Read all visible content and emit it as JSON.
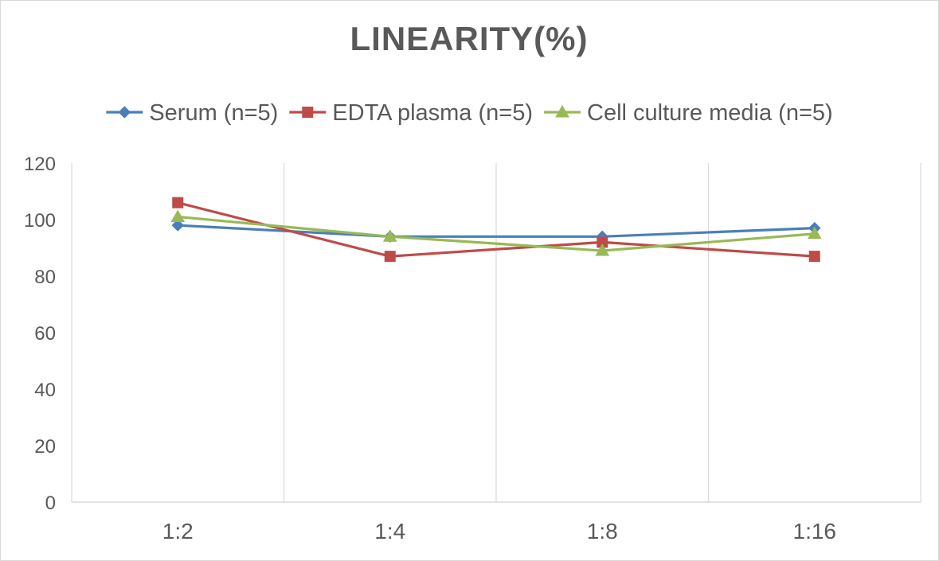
{
  "chart_data": {
    "type": "line",
    "title": "LINEARITY(%)",
    "xlabel": "",
    "ylabel": "",
    "categories": [
      "1:2",
      "1:4",
      "1:8",
      "1:16"
    ],
    "ylim": [
      0,
      120
    ],
    "yticks": [
      0,
      20,
      40,
      60,
      80,
      100,
      120
    ],
    "grid": "vertical",
    "legend_position": "top",
    "series": [
      {
        "name": "Serum (n=5)",
        "values": [
          98,
          94,
          94,
          97
        ],
        "color": "#4a7ebb",
        "marker": "diamond"
      },
      {
        "name": "EDTA plasma (n=5)",
        "values": [
          106,
          87,
          92,
          87
        ],
        "color": "#be4b48",
        "marker": "square"
      },
      {
        "name": "Cell culture media (n=5)",
        "values": [
          101,
          94,
          89,
          95
        ],
        "color": "#98b954",
        "marker": "triangle"
      }
    ]
  }
}
